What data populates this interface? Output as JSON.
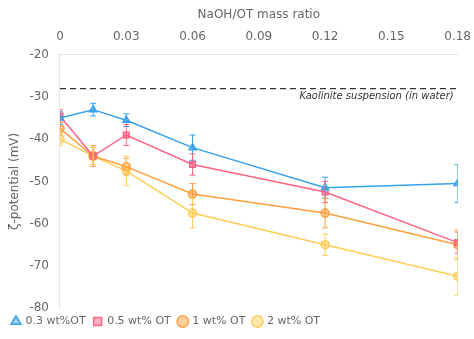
{
  "chart_data": {
    "type": "line",
    "xlabel": "NaOH/OT mass ratio",
    "ylabel": "ζ-potential (mV)",
    "x": [
      0,
      0.015,
      0.03,
      0.06,
      0.12,
      0.18
    ],
    "xlim": [
      0,
      0.18
    ],
    "xticks": [
      0,
      0.03,
      0.06,
      0.09,
      0.12,
      0.15,
      0.18
    ],
    "ylim": [
      -80,
      -20
    ],
    "yticks": [
      -80,
      -70,
      -60,
      -50,
      -40,
      -30,
      -20
    ],
    "grid": false,
    "legend": "lower left",
    "annotations": [
      {
        "text": "Kaolinite suspension (in water)",
        "y": -28,
        "line_style": "dashed"
      }
    ],
    "series": [
      {
        "name": "0.3 wt%OT",
        "marker": "triangle",
        "values": [
          -35.0,
          -33.0,
          -35.5,
          -42.0,
          -51.5,
          -50.5
        ],
        "yerr": [
          1.5,
          1.5,
          1.5,
          3.0,
          2.5,
          4.5
        ]
      },
      {
        "name": "0.5 wt% OT",
        "marker": "square",
        "values": [
          -34.5,
          -44.0,
          -39.0,
          -46.0,
          -52.5,
          -64.5
        ],
        "yerr": [
          1.5,
          2.0,
          2.5,
          2.5,
          2.5,
          2.5
        ]
      },
      {
        "name": "1 wt% OT",
        "marker": "circle",
        "values": [
          -37.5,
          -44.0,
          -46.5,
          -53.0,
          -57.5,
          -65.0
        ],
        "yerr": [
          1.5,
          2.5,
          2.0,
          2.5,
          3.5,
          3.5
        ]
      },
      {
        "name": "2 wt% OT",
        "marker": "circle",
        "values": [
          -40.0,
          -44.0,
          -47.5,
          -57.5,
          -65.0,
          -72.5
        ],
        "yerr": [
          1.5,
          2.0,
          3.5,
          3.5,
          2.5,
          4.5
        ]
      }
    ]
  }
}
